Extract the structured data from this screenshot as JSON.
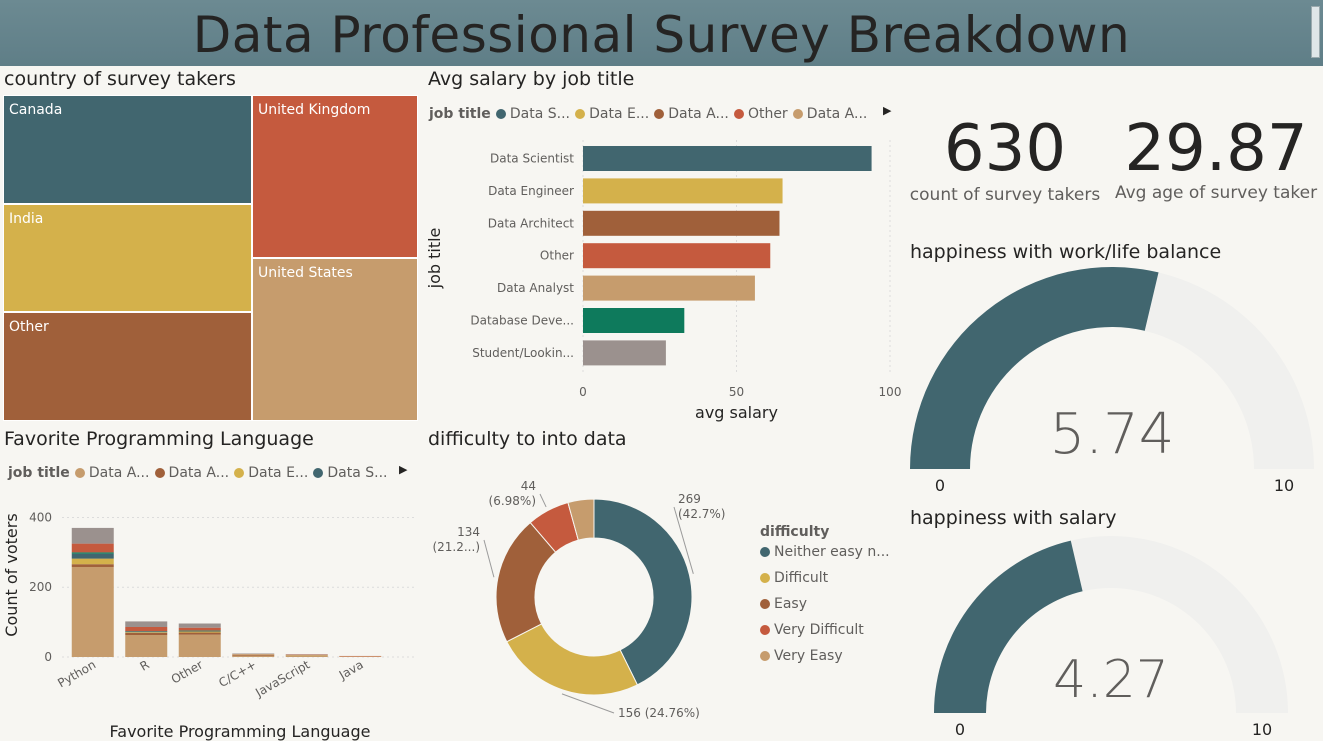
{
  "title": "Data Professional Survey Breakdown",
  "colors": {
    "teal": "#41666f",
    "gold": "#d4b14b",
    "brown": "#a0603a",
    "red": "#c55a3e",
    "tan": "#c69c6d",
    "green": "#0e7a5c",
    "gray": "#9b918e",
    "track": "#f0f0ee",
    "header": "#5f7e87"
  },
  "country": {
    "title": "country of survey takers",
    "cells": [
      {
        "label": "Canada",
        "color": "#41666f"
      },
      {
        "label": "India",
        "color": "#d4b14b"
      },
      {
        "label": "Other",
        "color": "#a0603a"
      },
      {
        "label": "United Kingdom",
        "color": "#c55a3e"
      },
      {
        "label": "United States",
        "color": "#c69c6d"
      }
    ]
  },
  "salary": {
    "title": "Avg salary by job title",
    "legend_title": "job title",
    "legend": [
      {
        "label": "Data S...",
        "color": "#41666f"
      },
      {
        "label": "Data E...",
        "color": "#d4b14b"
      },
      {
        "label": "Data A...",
        "color": "#a0603a"
      },
      {
        "label": "Other",
        "color": "#c55a3e"
      },
      {
        "label": "Data A...",
        "color": "#c69c6d"
      }
    ],
    "more_arrow": "▶"
  },
  "language": {
    "title": "Favorite Programming Language",
    "legend_title": "job title",
    "legend": [
      {
        "label": "Data A...",
        "color": "#c69c6d"
      },
      {
        "label": "Data A...",
        "color": "#a0603a"
      },
      {
        "label": "Data E...",
        "color": "#d4b14b"
      },
      {
        "label": "Data S...",
        "color": "#41666f"
      }
    ],
    "more_arrow": "▶"
  },
  "difficulty": {
    "title": "difficulty to into data",
    "legend_title": "difficulty",
    "legend": [
      {
        "label": "Neither easy n...",
        "color": "#41666f"
      },
      {
        "label": "Difficult",
        "color": "#d4b14b"
      },
      {
        "label": "Easy",
        "color": "#a0603a"
      },
      {
        "label": "Very Difficult",
        "color": "#c55a3e"
      },
      {
        "label": "Very Easy",
        "color": "#c69c6d"
      }
    ]
  },
  "cards": {
    "count_value": "630",
    "count_label": "count of survey takers",
    "age_value": "29.87",
    "age_label": "Avg age of survey taker"
  },
  "gauges": [
    {
      "title": "happiness with work/life balance",
      "value": 5.74,
      "value_text": "5.74",
      "min": 0,
      "max": 10,
      "min_text": "0",
      "max_text": "10"
    },
    {
      "title": "happiness with salary",
      "value": 4.27,
      "value_text": "4.27",
      "min": 0,
      "max": 10,
      "min_text": "0",
      "max_text": "10"
    }
  ],
  "chart_data": [
    {
      "type": "treemap",
      "title": "country of survey takers",
      "categories": [
        "Canada",
        "India",
        "Other",
        "United Kingdom",
        "United States"
      ],
      "values": [
        2,
        1.6,
        1.6,
        2,
        2
      ]
    },
    {
      "type": "bar",
      "orientation": "horizontal",
      "title": "Avg salary by job title",
      "categories": [
        "Data Scientist",
        "Data Engineer",
        "Data Architect",
        "Other",
        "Data Analyst",
        "Database Deve...",
        "Student/Lookin..."
      ],
      "values": [
        94,
        65,
        64,
        61,
        56,
        33,
        27
      ],
      "colors": [
        "#41666f",
        "#d4b14b",
        "#a0603a",
        "#c55a3e",
        "#c69c6d",
        "#0e7a5c",
        "#9b918e"
      ],
      "xlabel": "avg salary",
      "ylabel": "job title",
      "xlim": [
        0,
        100
      ],
      "xticks": [
        0,
        50,
        100
      ]
    },
    {
      "type": "bar",
      "stacked": true,
      "title": "Favorite Programming Language",
      "categories": [
        "Python",
        "R",
        "Other",
        "C/C++",
        "JavaScript",
        "Java"
      ],
      "series": [
        {
          "name": "Data Analyst",
          "color": "#c69c6d",
          "values": [
            258,
            63,
            64,
            4,
            4,
            2
          ]
        },
        {
          "name": "Data Architect",
          "color": "#a0603a",
          "values": [
            8,
            6,
            6,
            2,
            1,
            0
          ]
        },
        {
          "name": "Data Engineer",
          "color": "#d4b14b",
          "values": [
            16,
            2,
            3,
            1,
            1,
            0
          ]
        },
        {
          "name": "Data Scientist",
          "color": "#41666f",
          "values": [
            14,
            2,
            2,
            0,
            0,
            0
          ]
        },
        {
          "name": "Database Developer",
          "color": "#0e7a5c",
          "values": [
            4,
            1,
            1,
            0,
            0,
            0
          ]
        },
        {
          "name": "Other",
          "color": "#c55a3e",
          "values": [
            25,
            12,
            8,
            1,
            1,
            1
          ]
        },
        {
          "name": "Student/Looking",
          "color": "#9b918e",
          "values": [
            45,
            16,
            12,
            2,
            1,
            0
          ]
        }
      ],
      "xlabel": "Favorite Programming Language",
      "ylabel": "Count of voters",
      "ylim": [
        0,
        450
      ],
      "yticks": [
        0,
        200,
        400
      ]
    },
    {
      "type": "pie",
      "donut": true,
      "title": "difficulty to into data",
      "categories": [
        "Neither easy nor difficult",
        "Difficult",
        "Easy",
        "Very Difficult",
        "Very Easy"
      ],
      "values": [
        269,
        156,
        134,
        44,
        27
      ],
      "labels": [
        {
          "count": "269",
          "pct": "(42.7%)"
        },
        {
          "count": "156",
          "pct": "(24.76%)"
        },
        {
          "count": "134",
          "pct": "(21.2...)"
        },
        {
          "count": "44",
          "pct": "(6.98%)"
        },
        {
          "count": "",
          "pct": ""
        }
      ],
      "colors": [
        "#41666f",
        "#d4b14b",
        "#a0603a",
        "#c55a3e",
        "#c69c6d"
      ]
    }
  ]
}
